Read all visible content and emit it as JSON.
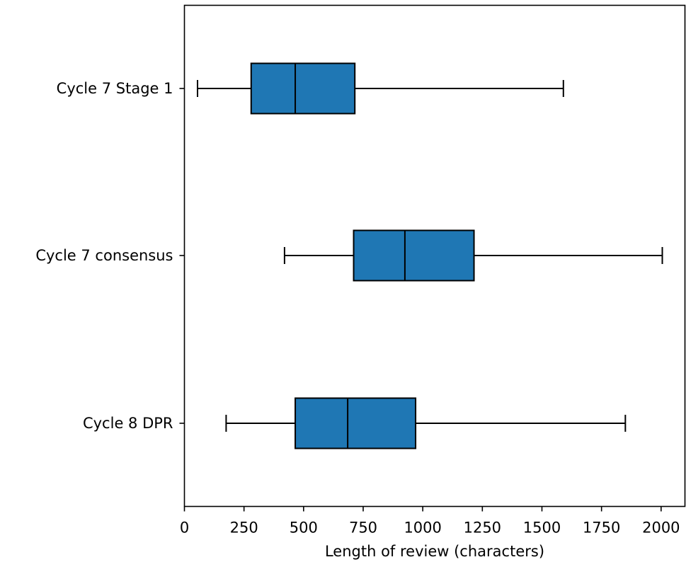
{
  "chart_data": {
    "type": "boxplot",
    "orientation": "horizontal",
    "xlabel": "Length of review (characters)",
    "ylabel": "",
    "title": "",
    "xlim": [
      0,
      2100
    ],
    "xticks": [
      0,
      250,
      500,
      750,
      1000,
      1250,
      1500,
      1750,
      2000
    ],
    "grid": false,
    "colors": {
      "box_fill": "#1f77b4",
      "stroke": "#000000"
    },
    "series": [
      {
        "name": "Cycle 7 Stage 1",
        "whisker_low": 55,
        "q1": 280,
        "median": 465,
        "q3": 715,
        "whisker_high": 1590
      },
      {
        "name": "Cycle 7 consensus",
        "whisker_low": 420,
        "q1": 710,
        "median": 925,
        "q3": 1215,
        "whisker_high": 2005
      },
      {
        "name": "Cycle 8 DPR",
        "whisker_low": 175,
        "q1": 465,
        "median": 685,
        "q3": 970,
        "whisker_high": 1850
      }
    ]
  }
}
